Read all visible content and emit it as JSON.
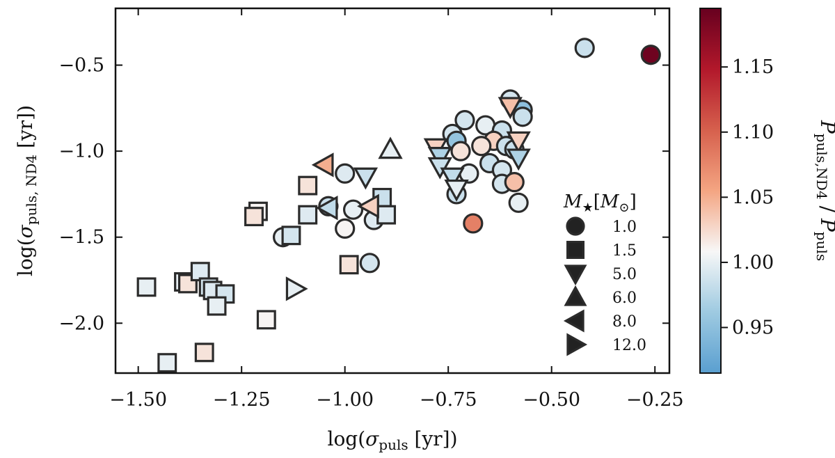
{
  "chart_data": {
    "type": "scatter",
    "xlabel": "log(σpuls [yr])",
    "xlabel_parts": {
      "pre": "log(",
      "sym": "σ",
      "sub": "puls",
      "post": " [yr])"
    },
    "ylabel": "log(σpuls, ND4 [yr])",
    "ylabel_parts": {
      "pre": "log(",
      "sym": "σ",
      "sub": "puls, ND4",
      "post": " [yr])"
    },
    "xlim": [
      -1.555,
      -0.215
    ],
    "ylim": [
      -2.29,
      -0.17
    ],
    "xticks": [
      -1.5,
      -1.25,
      -1.0,
      -0.75,
      -0.5,
      -0.25
    ],
    "xtick_labels": [
      "−1.50",
      "−1.25",
      "−1.00",
      "−0.75",
      "−0.50",
      "−0.25"
    ],
    "yticks": [
      -2.0,
      -1.5,
      -1.0,
      -0.5
    ],
    "ytick_labels": [
      "−2.0",
      "−1.5",
      "−1.0",
      "−0.5"
    ],
    "colorbar": {
      "label": "Ppuls,ND4 / Ppuls",
      "label_parts": {
        "sym1": "P",
        "sub1": "puls,ND4",
        "sep": " / ",
        "sym2": "P",
        "sub2": "puls"
      },
      "range": [
        0.915,
        1.195
      ],
      "ticks": [
        0.95,
        1.0,
        1.05,
        1.1,
        1.15
      ],
      "tick_labels": [
        "0.95",
        "1.00",
        "1.05",
        "1.10",
        "1.15"
      ],
      "colormap": "RdBu_r",
      "stops": [
        "#5a9fd0",
        "#9ecae1",
        "#f7f7f7",
        "#f4a582",
        "#d6604d",
        "#b2182b",
        "#67001f"
      ]
    },
    "legend": {
      "title": "M★[M⊙]",
      "title_parts": {
        "sym": "M",
        "star": "★",
        "bracket_open": "[",
        "sym2": "M",
        "sun": "⊙",
        "bracket_close": "]"
      },
      "position": "right-inside",
      "entries": [
        {
          "marker": "circle",
          "label": "1.0"
        },
        {
          "marker": "square",
          "label": "1.5"
        },
        {
          "marker": "triangle-down",
          "label": "5.0"
        },
        {
          "marker": "triangle-up",
          "label": "6.0"
        },
        {
          "marker": "triangle-left",
          "label": "8.0"
        },
        {
          "marker": "triangle-right",
          "label": "12.0"
        }
      ]
    },
    "series": [
      {
        "name": "1.0",
        "marker": "circle",
        "points": [
          [
            -0.42,
            -0.4,
            0.985
          ],
          [
            -0.26,
            -0.44,
            1.19
          ],
          [
            -0.6,
            -0.7,
            0.99
          ],
          [
            -0.57,
            -0.76,
            0.95
          ],
          [
            -0.57,
            -0.8,
            0.985
          ],
          [
            -0.71,
            -0.82,
            0.99
          ],
          [
            -0.66,
            -0.85,
            1.0
          ],
          [
            -0.62,
            -0.88,
            0.985
          ],
          [
            -0.74,
            -0.9,
            0.99
          ],
          [
            -0.73,
            -0.94,
            0.955
          ],
          [
            -0.64,
            -0.94,
            1.03
          ],
          [
            -0.67,
            -0.97,
            1.02
          ],
          [
            -0.61,
            -0.97,
            0.985
          ],
          [
            -0.72,
            -1.0,
            1.02
          ],
          [
            -0.59,
            -0.99,
            0.985
          ],
          [
            -0.65,
            -1.07,
            0.985
          ],
          [
            -0.62,
            -1.11,
            0.99
          ],
          [
            -0.7,
            -1.13,
            1.0
          ],
          [
            -0.62,
            -1.19,
            0.99
          ],
          [
            -0.59,
            -1.18,
            1.04
          ],
          [
            -0.73,
            -1.25,
            0.985
          ],
          [
            -0.58,
            -1.3,
            1.0
          ],
          [
            -0.69,
            -1.42,
            1.08
          ],
          [
            -1.0,
            -1.13,
            0.995
          ],
          [
            -0.98,
            -1.34,
            1.0
          ],
          [
            -1.0,
            -1.45,
            1.01
          ],
          [
            -0.93,
            -1.4,
            0.995
          ],
          [
            -0.94,
            -1.65,
            0.99
          ],
          [
            -1.15,
            -1.5,
            1.0
          ],
          [
            -1.04,
            -1.32,
            0.985
          ]
        ]
      },
      {
        "name": "1.5",
        "marker": "square",
        "points": [
          [
            -1.09,
            -1.2,
            1.02
          ],
          [
            -1.21,
            -1.35,
            1.01
          ],
          [
            -1.22,
            -1.38,
            1.02
          ],
          [
            -1.09,
            -1.37,
            0.995
          ],
          [
            -0.91,
            -1.27,
            0.985
          ],
          [
            -0.9,
            -1.37,
            0.995
          ],
          [
            -1.13,
            -1.49,
            0.99
          ],
          [
            -0.99,
            -1.66,
            1.02
          ],
          [
            -1.48,
            -1.79,
            1.0
          ],
          [
            -1.39,
            -1.76,
            1.0
          ],
          [
            -1.38,
            -1.77,
            1.02
          ],
          [
            -1.35,
            -1.7,
            0.995
          ],
          [
            -1.33,
            -1.79,
            0.99
          ],
          [
            -1.32,
            -1.81,
            0.995
          ],
          [
            -1.29,
            -1.83,
            0.99
          ],
          [
            -1.31,
            -1.9,
            1.0
          ],
          [
            -1.19,
            -1.98,
            1.01
          ],
          [
            -1.34,
            -2.17,
            1.02
          ],
          [
            -1.43,
            -2.23,
            1.0
          ]
        ]
      },
      {
        "name": "5.0",
        "marker": "triangle-down",
        "points": [
          [
            -0.6,
            -0.74,
            1.04
          ],
          [
            -0.58,
            -0.94,
            1.03
          ],
          [
            -0.78,
            -0.98,
            1.03
          ],
          [
            -0.77,
            -1.03,
            0.97
          ],
          [
            -0.58,
            -1.04,
            0.97
          ],
          [
            -0.77,
            -1.09,
            0.985
          ],
          [
            -0.74,
            -1.15,
            0.98
          ],
          [
            -0.73,
            -1.22,
            1.0
          ],
          [
            -0.95,
            -1.15,
            0.985
          ]
        ]
      },
      {
        "name": "6.0",
        "marker": "triangle-up",
        "points": [
          [
            -0.89,
            -0.99,
            1.0
          ]
        ]
      },
      {
        "name": "8.0",
        "marker": "triangle-left",
        "points": [
          [
            -1.05,
            -1.08,
            1.05
          ],
          [
            -1.04,
            -1.33,
            0.98
          ],
          [
            -0.94,
            -1.32,
            1.03
          ]
        ]
      },
      {
        "name": "12.0",
        "marker": "triangle-right",
        "points": [
          [
            -1.12,
            -1.8,
            1.0
          ]
        ]
      }
    ]
  }
}
